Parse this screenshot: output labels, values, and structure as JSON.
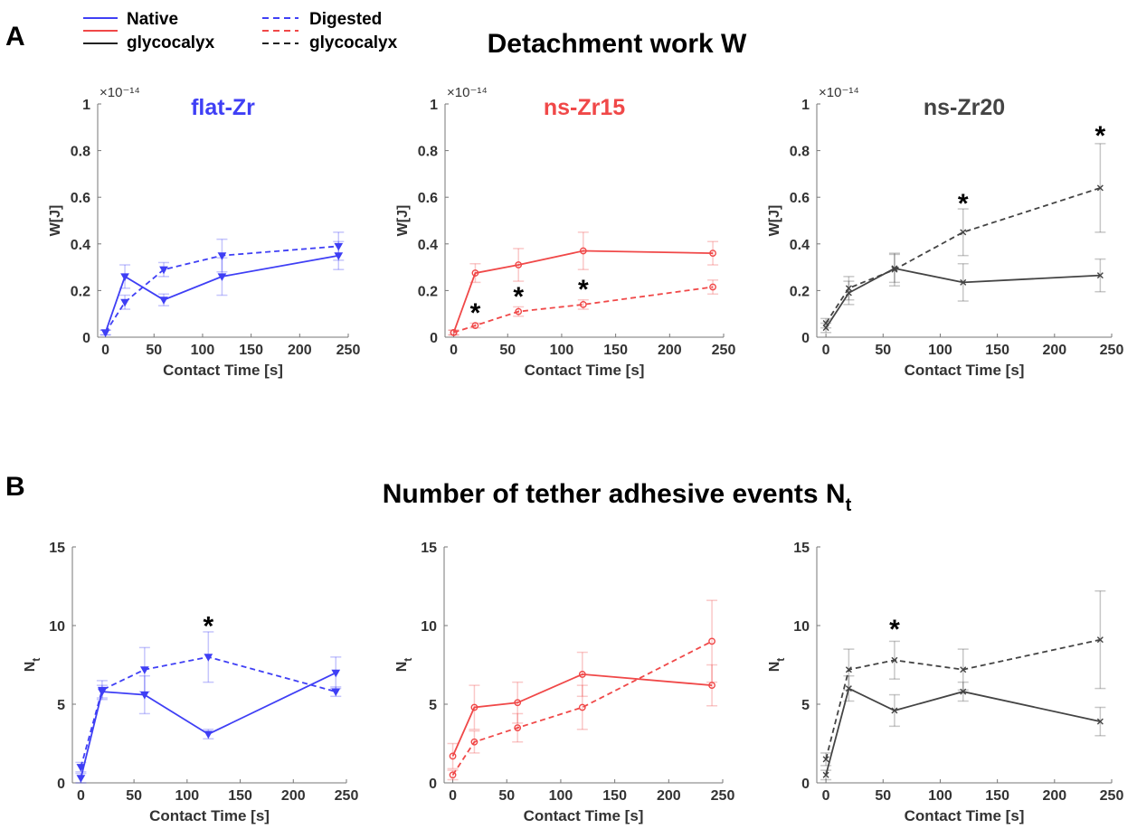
{
  "figure": {
    "panel_a_label": "A",
    "panel_b_label": "B",
    "title_a": "Detachment work W",
    "title_b_main": "Number of tether adhesive events N",
    "title_b_sub": "t",
    "legend": {
      "native_line1": "Native",
      "native_line2": "glycocalyx",
      "digested_line1": "Digested",
      "digested_line2": "glycocalyx"
    }
  },
  "chart_data": [
    {
      "type": "line",
      "panel": "A",
      "subtitle": "flat-Zr",
      "color": "#3f3ff5",
      "marker": "triangle",
      "xlabel": "Contact Time [s]",
      "ylabel": "W[J]",
      "exponent": "×10⁻¹⁴",
      "xlim": [
        -8,
        250
      ],
      "ylim": [
        0,
        1
      ],
      "xticks": [
        0,
        50,
        100,
        150,
        200,
        250
      ],
      "yticks": [
        0,
        0.2,
        0.4,
        0.6,
        0.8,
        1
      ],
      "yticklabels": [
        "0",
        "0.2",
        "0.4",
        "0.6",
        "0.8",
        "1"
      ],
      "x": [
        0,
        20,
        60,
        120,
        240
      ],
      "series": [
        {
          "name": "Native",
          "dashed": false,
          "values": [
            0.02,
            0.26,
            0.16,
            0.26,
            0.35
          ],
          "err": [
            0.01,
            0.05,
            0.025,
            0.08,
            0.06
          ]
        },
        {
          "name": "Digested",
          "dashed": true,
          "values": [
            0.02,
            0.15,
            0.29,
            0.35,
            0.39
          ],
          "err": [
            0.01,
            0.03,
            0.03,
            0.07,
            0.06
          ]
        }
      ],
      "annotations": []
    },
    {
      "type": "line",
      "panel": "A",
      "subtitle": "ns-Zr15",
      "color": "#f04848",
      "marker": "circle",
      "xlabel": "Contact Time [s]",
      "ylabel": "W[J]",
      "exponent": "×10⁻¹⁴",
      "xlim": [
        -8,
        250
      ],
      "ylim": [
        0,
        1
      ],
      "xticks": [
        0,
        50,
        100,
        150,
        200,
        250
      ],
      "yticks": [
        0,
        0.2,
        0.4,
        0.6,
        0.8,
        1
      ],
      "yticklabels": [
        "0",
        "0.2",
        "0.4",
        "0.6",
        "0.8",
        "1"
      ],
      "x": [
        0,
        20,
        60,
        120,
        240
      ],
      "series": [
        {
          "name": "Native",
          "dashed": false,
          "values": [
            0.02,
            0.275,
            0.31,
            0.37,
            0.36
          ],
          "err": [
            0.01,
            0.04,
            0.07,
            0.08,
            0.05
          ]
        },
        {
          "name": "Digested",
          "dashed": true,
          "values": [
            0.02,
            0.05,
            0.11,
            0.14,
            0.215
          ],
          "err": [
            0.01,
            0.01,
            0.02,
            0.02,
            0.03
          ]
        }
      ],
      "annotations": [
        {
          "text": "*",
          "x": 20,
          "y": 0.12
        },
        {
          "text": "*",
          "x": 60,
          "y": 0.19
        },
        {
          "text": "*",
          "x": 120,
          "y": 0.22
        }
      ]
    },
    {
      "type": "line",
      "panel": "A",
      "subtitle": "ns-Zr20",
      "color": "#444444",
      "marker": "x",
      "xlabel": "Contact Time [s]",
      "ylabel": "W[J]",
      "exponent": "×10⁻¹⁴",
      "xlim": [
        -8,
        250
      ],
      "ylim": [
        0,
        1
      ],
      "xticks": [
        0,
        50,
        100,
        150,
        200,
        250
      ],
      "yticks": [
        0,
        0.2,
        0.4,
        0.6,
        0.8,
        1
      ],
      "yticklabels": [
        "0",
        "0.2",
        "0.4",
        "0.6",
        "0.8",
        "1"
      ],
      "x": [
        0,
        20,
        60,
        120,
        240
      ],
      "series": [
        {
          "name": "Native",
          "dashed": false,
          "values": [
            0.04,
            0.19,
            0.295,
            0.235,
            0.265
          ],
          "err": [
            0.02,
            0.05,
            0.06,
            0.08,
            0.07
          ]
        },
        {
          "name": "Digested",
          "dashed": true,
          "values": [
            0.06,
            0.21,
            0.29,
            0.45,
            0.64
          ],
          "err": [
            0.02,
            0.05,
            0.07,
            0.1,
            0.19
          ]
        }
      ],
      "annotations": [
        {
          "text": "*",
          "x": 120,
          "y": 0.59
        },
        {
          "text": "*",
          "x": 240,
          "y": 0.88
        }
      ]
    },
    {
      "type": "line",
      "panel": "B",
      "subtitle": "",
      "color": "#3f3ff5",
      "marker": "triangle",
      "xlabel": "Contact Time [s]",
      "ylabel": "N",
      "ylabel_sub": "t",
      "exponent": "",
      "xlim": [
        -8,
        250
      ],
      "ylim": [
        0,
        15
      ],
      "xticks": [
        0,
        50,
        100,
        150,
        200,
        250
      ],
      "yticks": [
        0,
        5,
        10,
        15
      ],
      "yticklabels": [
        "0",
        "5",
        "10",
        "15"
      ],
      "x": [
        0,
        20,
        60,
        120,
        240
      ],
      "series": [
        {
          "name": "Native",
          "dashed": false,
          "values": [
            0.3,
            5.8,
            5.6,
            3.1,
            7.0
          ],
          "err": [
            0.3,
            0.4,
            1.2,
            0.3,
            1.0
          ]
        },
        {
          "name": "Digested",
          "dashed": true,
          "values": [
            1.0,
            5.9,
            7.2,
            8.0,
            5.8
          ],
          "err": [
            0.3,
            0.6,
            1.4,
            1.6,
            0.3
          ]
        }
      ],
      "annotations": [
        {
          "text": "*",
          "x": 120,
          "y": 10.2
        }
      ]
    },
    {
      "type": "line",
      "panel": "B",
      "subtitle": "",
      "color": "#f04848",
      "marker": "circle",
      "xlabel": "Contact Time [s]",
      "ylabel": "N",
      "ylabel_sub": "t",
      "exponent": "",
      "xlim": [
        -8,
        250
      ],
      "ylim": [
        0,
        15
      ],
      "xticks": [
        0,
        50,
        100,
        150,
        200,
        250
      ],
      "yticks": [
        0,
        5,
        10,
        15
      ],
      "yticklabels": [
        "0",
        "5",
        "10",
        "15"
      ],
      "x": [
        0,
        20,
        60,
        120,
        240
      ],
      "series": [
        {
          "name": "Native",
          "dashed": false,
          "values": [
            1.7,
            4.8,
            5.1,
            6.9,
            6.2
          ],
          "err": [
            0.8,
            1.4,
            1.3,
            1.4,
            1.3
          ]
        },
        {
          "name": "Digested",
          "dashed": true,
          "values": [
            0.5,
            2.6,
            3.5,
            4.8,
            9.0
          ],
          "err": [
            0.3,
            0.7,
            0.9,
            1.4,
            2.6
          ]
        }
      ],
      "annotations": []
    },
    {
      "type": "line",
      "panel": "B",
      "subtitle": "",
      "color": "#444444",
      "marker": "x",
      "xlabel": "Contact Time [s]",
      "ylabel": "N",
      "ylabel_sub": "t",
      "exponent": "",
      "xlim": [
        -8,
        250
      ],
      "ylim": [
        0,
        15
      ],
      "xticks": [
        0,
        50,
        100,
        150,
        200,
        250
      ],
      "yticks": [
        0,
        5,
        10,
        15
      ],
      "yticklabels": [
        "0",
        "5",
        "10",
        "15"
      ],
      "x": [
        0,
        20,
        60,
        120,
        240
      ],
      "series": [
        {
          "name": "Native",
          "dashed": false,
          "values": [
            0.5,
            6.0,
            4.6,
            5.8,
            3.9
          ],
          "err": [
            0.3,
            0.8,
            1.0,
            0.6,
            0.9
          ]
        },
        {
          "name": "Digested",
          "dashed": true,
          "values": [
            1.5,
            7.2,
            7.8,
            7.2,
            9.1
          ],
          "err": [
            0.4,
            1.3,
            1.2,
            1.3,
            3.1
          ]
        }
      ],
      "annotations": [
        {
          "text": "*",
          "x": 60,
          "y": 10.0
        }
      ]
    }
  ]
}
